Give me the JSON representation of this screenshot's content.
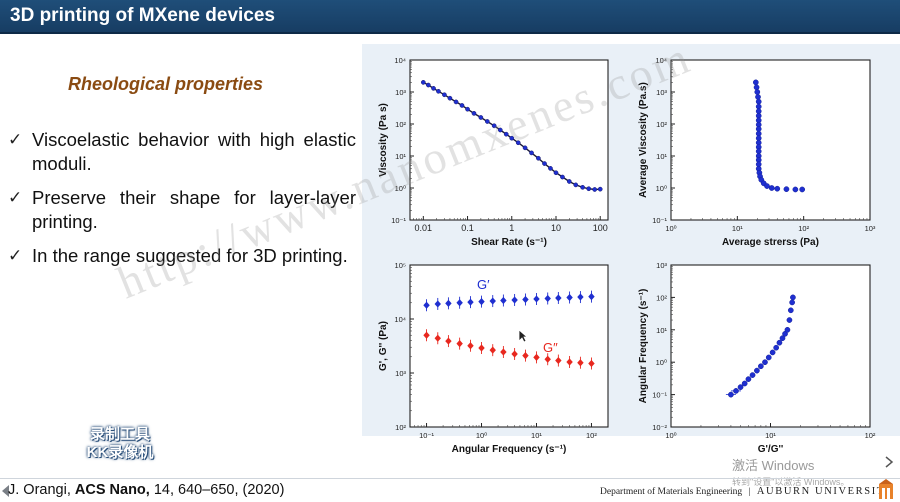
{
  "slide": {
    "title": "3D printing of MXene devices",
    "subtitle": "Rheological properties",
    "bullets": [
      {
        "mark": "✓",
        "text": "Viscoelastic behavior with high elastic moduli."
      },
      {
        "mark": "✓",
        "text": "Preserve their shape for layer-layer printing."
      },
      {
        "mark": "✓",
        "text": "In the range suggested for 3D printing."
      }
    ],
    "citation": {
      "author": "J. Orangi,",
      "journal": "ACS Nano,",
      "details": " 14, 640–650, (2020)"
    },
    "department": "Department of Materials Engineering",
    "separator": "|",
    "university": "AUBURN UNIVERSITY",
    "watermark": "http://www.nanomxenes.com",
    "recorder_logo": [
      "录制工具",
      "KK录像机"
    ],
    "windows_notice": [
      "激活 Windows",
      "转到\"设置\"以激活 Windows。"
    ]
  },
  "colors": {
    "title_bg": "#1f4e79",
    "subtitle": "#8a4b12",
    "gprime": "#1f2fd0",
    "gdouble": "#e8281f",
    "fit_line": "#1a1a3a"
  },
  "chart_data": [
    {
      "type": "line",
      "xlabel": "Shear Rate (s⁻¹)",
      "ylabel": "Viscosity (Pa s)",
      "xscale": "log",
      "yscale": "log",
      "xlim": [
        0.001,
        150
      ],
      "ylim": [
        0.1,
        10000
      ],
      "xticks": [
        "0.01",
        "0.1",
        "1",
        "10",
        "100"
      ],
      "yticks": [
        "10⁻¹",
        "10⁰",
        "10¹",
        "10²",
        "10³",
        "10⁴"
      ],
      "series": [
        {
          "x": [
            0.01,
            0.013,
            0.017,
            0.022,
            0.03,
            0.04,
            0.055,
            0.075,
            0.1,
            0.14,
            0.2,
            0.28,
            0.4,
            0.55,
            0.75,
            1,
            1.4,
            2,
            2.8,
            4,
            5.5,
            7.5,
            10,
            14,
            20,
            28,
            40,
            55,
            75,
            100
          ],
          "y": [
            2000,
            1650,
            1300,
            1050,
            820,
            640,
            490,
            380,
            290,
            215,
            160,
            120,
            88,
            65,
            48,
            36,
            26,
            18,
            12.5,
            8.5,
            5.8,
            4.1,
            3.0,
            2.2,
            1.6,
            1.25,
            1.05,
            0.95,
            0.9,
            0.92
          ]
        }
      ]
    },
    {
      "type": "scatter",
      "xlabel": "Average strerss (Pa)",
      "ylabel": "Average Viscosity (Pa.s)",
      "xscale": "log",
      "yscale": "log",
      "xlim": [
        1,
        1000
      ],
      "ylim": [
        0.1,
        10000
      ],
      "xticks": [
        "10⁰",
        "10¹",
        "10²",
        "10³"
      ],
      "yticks": [
        "10⁻¹",
        "10⁰",
        "10¹",
        "10²",
        "10³",
        "10⁴"
      ],
      "series": [
        {
          "x": [
            19,
            19.5,
            20,
            20.5,
            21,
            21,
            21,
            21,
            21,
            21,
            21,
            21,
            21,
            21,
            21,
            21,
            21,
            21,
            21,
            21,
            21.5,
            22,
            23,
            25,
            28,
            33,
            40,
            55,
            75,
            95
          ],
          "y": [
            2000,
            1400,
            1000,
            700,
            500,
            350,
            250,
            180,
            130,
            95,
            70,
            50,
            36,
            26,
            19,
            14,
            10,
            7.5,
            5.5,
            4,
            3,
            2.3,
            1.8,
            1.4,
            1.15,
            1.0,
            0.95,
            0.92,
            0.9,
            0.9
          ]
        }
      ]
    },
    {
      "type": "scatter",
      "xlabel": "Angular Frequency (s⁻¹)",
      "ylabel": "G', G'' (Pa)",
      "xscale": "log",
      "yscale": "log",
      "xlim": [
        0.05,
        200
      ],
      "ylim": [
        100,
        100000
      ],
      "xticks": [
        "10⁻¹",
        "10⁰",
        "10¹",
        "10²"
      ],
      "yticks": [
        "10²",
        "10³",
        "10⁴",
        "10⁵"
      ],
      "series": [
        {
          "name": "G′",
          "x": [
            0.1,
            0.16,
            0.25,
            0.4,
            0.63,
            1,
            1.6,
            2.5,
            4,
            6.3,
            10,
            16,
            25,
            40,
            63,
            100
          ],
          "y": [
            18000,
            19000,
            19500,
            20000,
            20500,
            21000,
            21500,
            22000,
            22500,
            23000,
            23500,
            24000,
            24500,
            25000,
            25500,
            26000
          ]
        },
        {
          "name": "G″",
          "x": [
            0.1,
            0.16,
            0.25,
            0.4,
            0.63,
            1,
            1.6,
            2.5,
            4,
            6.3,
            10,
            16,
            25,
            40,
            63,
            100
          ],
          "y": [
            5000,
            4400,
            3900,
            3500,
            3200,
            2900,
            2650,
            2450,
            2250,
            2100,
            1950,
            1800,
            1700,
            1600,
            1550,
            1500
          ]
        }
      ]
    },
    {
      "type": "scatter",
      "xlabel": "G'/G''",
      "ylabel": "Angular Frequency (s⁻¹)",
      "xscale": "log",
      "yscale": "log",
      "xlim": [
        1,
        100
      ],
      "ylim": [
        0.01,
        1000
      ],
      "xticks": [
        "10⁰",
        "10¹",
        "10²"
      ],
      "yticks": [
        "10⁻²",
        "10⁻¹",
        "10⁰",
        "10¹",
        "10²",
        "10³"
      ],
      "series": [
        {
          "x": [
            4,
            4.5,
            5,
            5.5,
            6,
            6.6,
            7.3,
            8,
            8.8,
            9.6,
            10.5,
            11.4,
            12.3,
            13.2,
            14,
            14.8,
            15.5,
            16,
            16.5,
            16.8
          ],
          "y": [
            0.1,
            0.13,
            0.17,
            0.22,
            0.3,
            0.4,
            0.55,
            0.75,
            1,
            1.4,
            2,
            2.8,
            4,
            5.5,
            7.5,
            10,
            20,
            40,
            70,
            100
          ]
        }
      ]
    }
  ]
}
